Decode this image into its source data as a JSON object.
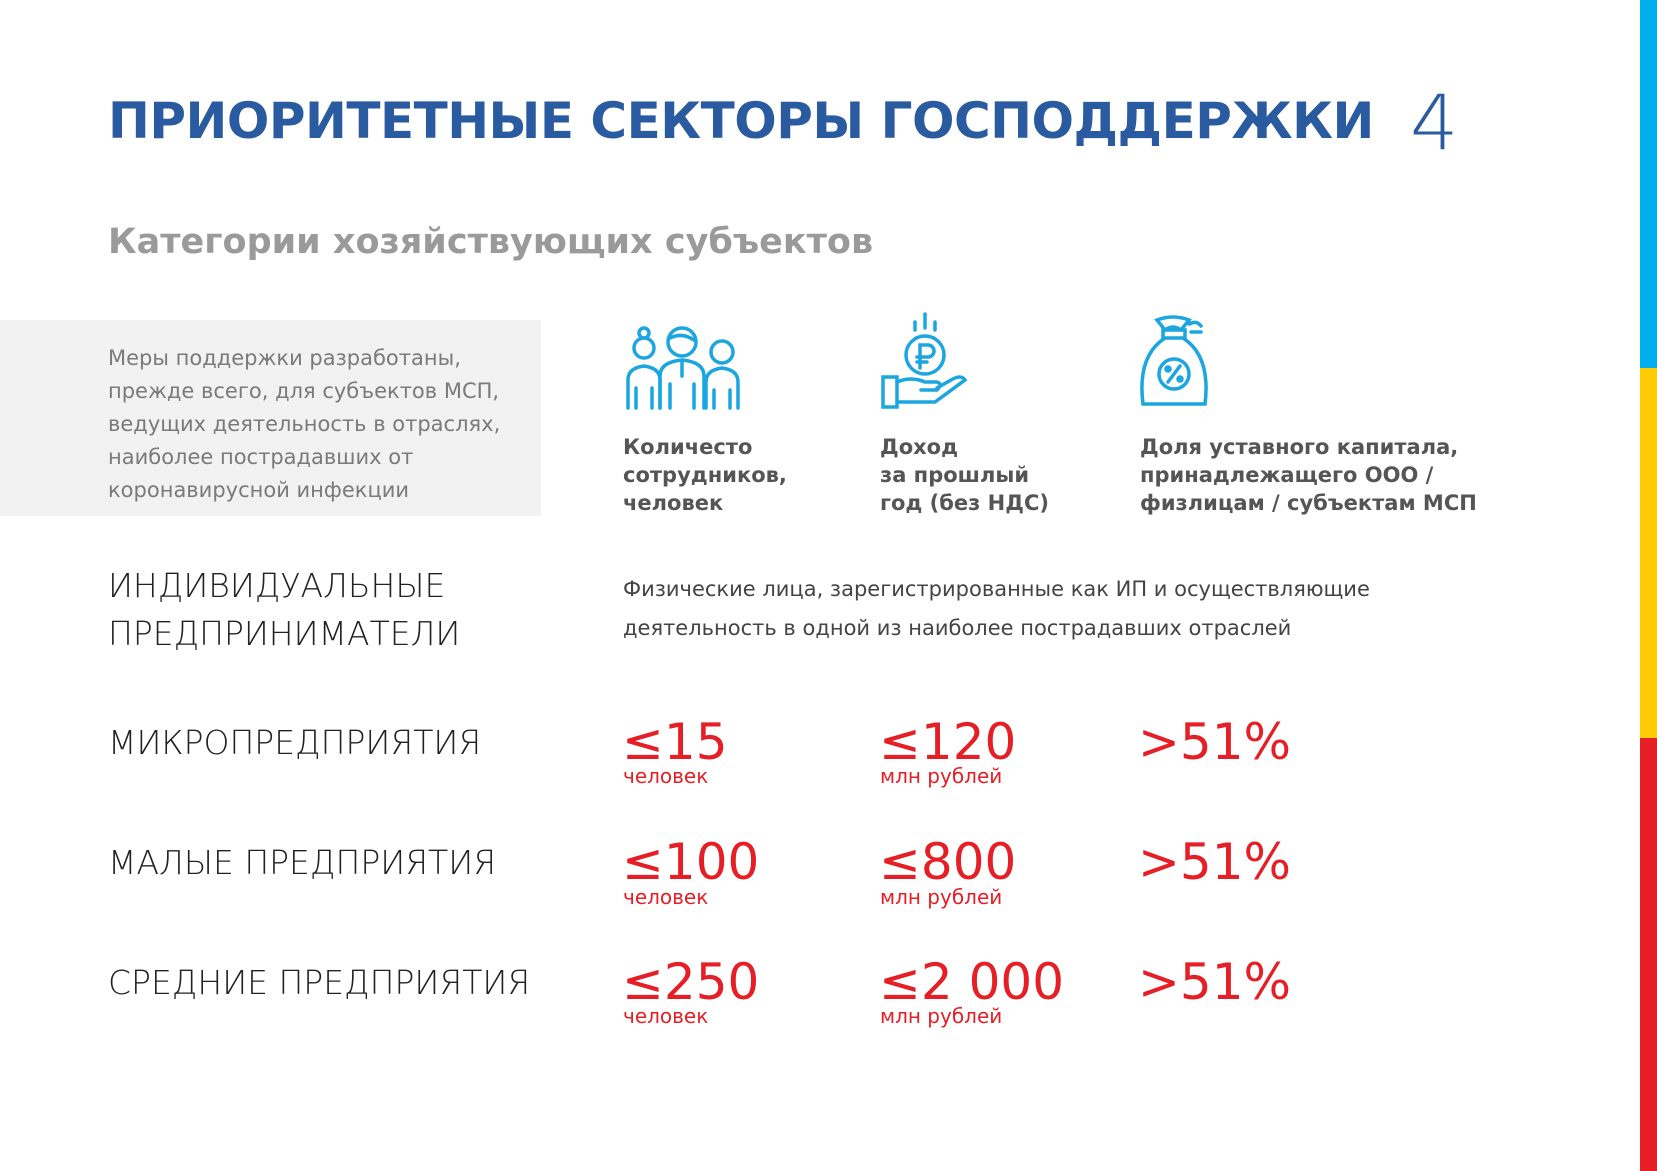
{
  "title": "ПРИОРИТЕТНЫЕ СЕКТОРЫ ГОСПОДДЕРЖКИ",
  "page_number": "4",
  "subtitle": "Категории хозяйствующих субъектов",
  "note": [
    "Меры поддержки разработаны,",
    "прежде всего, для субъектов МСП,",
    "ведущих деятельность в отраслях,",
    "наиболее пострадавших от",
    "коронавирусной инфекции"
  ],
  "columns": [
    {
      "icon": "people-icon",
      "label": [
        "Количесто",
        "сотрудников,",
        "человек"
      ]
    },
    {
      "icon": "hand-ruble-coin-icon",
      "label": [
        "Доход",
        "за прошлый",
        "год (без НДС)"
      ]
    },
    {
      "icon": "money-bag-percent-icon",
      "label": [
        "Доля уставного капитала,",
        "принадлежащего ООО /",
        "физлицам / субъектам МСП"
      ]
    }
  ],
  "ip": {
    "name": [
      "ИНДИВИДУАЛЬНЫЕ",
      "ПРЕДПРИНИМАТЕЛИ"
    ],
    "description": [
      "Физические лица, зарегистрированные как ИП и осуществляющие",
      "деятельность в одной из наиболее пострадавших отраслей"
    ]
  },
  "rows": [
    {
      "name": "МИКРОПРЕДПРИЯТИЯ",
      "employees": "≤15",
      "employees_unit": "человек",
      "income": "≤120",
      "income_unit": "млн рублей",
      "share": ">51%"
    },
    {
      "name": "МАЛЫЕ ПРЕДПРИЯТИЯ",
      "employees": "≤100",
      "employees_unit": "человек",
      "income": "≤800",
      "income_unit": "млн рублей",
      "share": ">51%"
    },
    {
      "name": "СРЕДНИЕ ПРЕДПРИЯТИЯ",
      "employees": "≤250",
      "employees_unit": "человек",
      "income": "≤2 000",
      "income_unit": "млн рублей",
      "share": ">51%"
    }
  ],
  "colors": {
    "title": "#2a5a9f",
    "accent_red": "#e51f25",
    "icon": "#1ba6e0",
    "stripe": [
      "#00aeef",
      "#ffcb05",
      "#e51f25"
    ]
  }
}
